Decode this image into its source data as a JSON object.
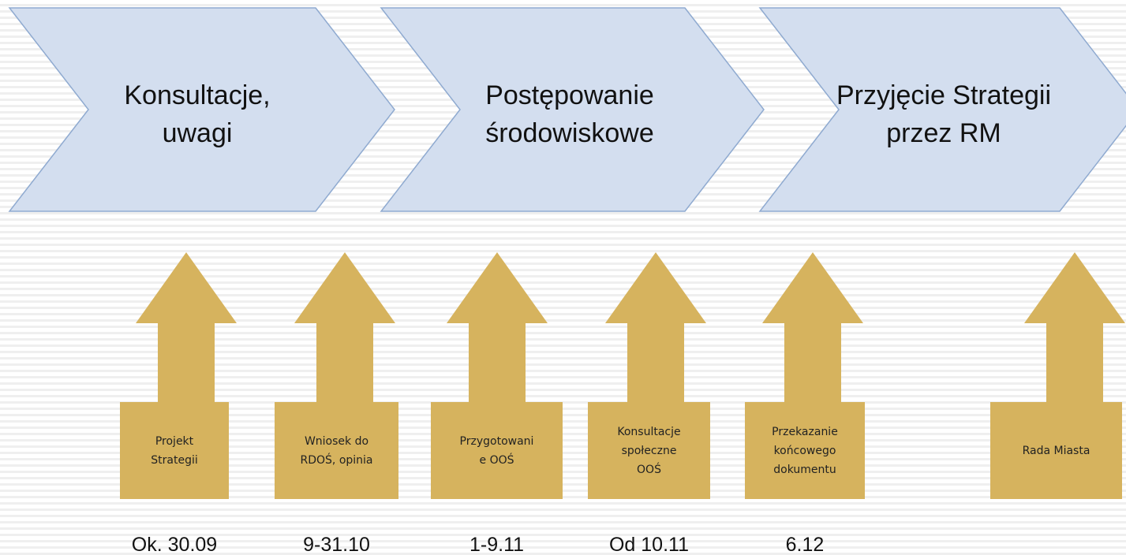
{
  "stages": [
    {
      "lines": [
        "Konsultacje,",
        "uwagi"
      ]
    },
    {
      "lines": [
        "Postępowanie",
        "środowiskowe"
      ]
    },
    {
      "lines": [
        "Przyjęcie Strategii",
        "przez RM"
      ]
    }
  ],
  "milestones": [
    {
      "lines": [
        "Projekt",
        "Strategii"
      ],
      "date": "Ok. 30.09"
    },
    {
      "lines": [
        "Wniosek do",
        "RDOŚ, opinia"
      ],
      "date": "9-31.10"
    },
    {
      "lines": [
        "Przygotowani",
        "e OOŚ"
      ],
      "date": "1-9.11"
    },
    {
      "lines": [
        "Konsultacje",
        "społeczne",
        "OOŚ"
      ],
      "date": "Od 10.11"
    },
    {
      "lines": [
        "Przekazanie",
        "końcowego",
        "dokumentu"
      ],
      "date": "6.12"
    },
    {
      "lines": [
        "Rada Miasta"
      ]
    }
  ]
}
